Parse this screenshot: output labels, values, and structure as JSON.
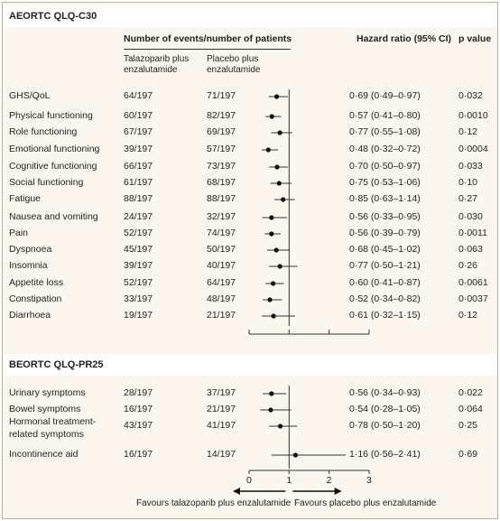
{
  "header": {
    "events_group": "Number of events/number of patients",
    "arm1": [
      "Talazoparib plus",
      "enzalutamide"
    ],
    "arm2": [
      "Placebo plus",
      "enzalutamide"
    ],
    "hr": "Hazard ratio (95% CI)",
    "p": "p value"
  },
  "footer": {
    "favours_left": "Favours talazoparib plus enzalutamide",
    "favours_right": "Favours placebo plus enzalutamide"
  },
  "chart_data": {
    "type": "forest",
    "xlim": [
      0,
      3
    ],
    "x_ticks": [
      "0",
      "1",
      "2",
      "3"
    ],
    "reference_line": 1,
    "panels": [
      {
        "letter": "A",
        "title": "EORTC QLQ-C30",
        "rows": [
          {
            "label": "GHS/QoL",
            "arm1": "64/197",
            "arm2": "71/197",
            "hr": 0.69,
            "lo": 0.49,
            "hi": 0.97,
            "ci_text": "0·69 (0·49–0·97)",
            "p": "0·032"
          },
          {
            "label": "Physical functioning",
            "arm1": "60/197",
            "arm2": "82/197",
            "hr": 0.57,
            "lo": 0.41,
            "hi": 0.8,
            "ci_text": "0·57 (0·41–0·80)",
            "p": "0·0010"
          },
          {
            "label": "Role functioning",
            "arm1": "67/197",
            "arm2": "69/197",
            "hr": 0.77,
            "lo": 0.55,
            "hi": 1.08,
            "ci_text": "0·77 (0·55–1·08)",
            "p": "0·12"
          },
          {
            "label": "Emotional functioning",
            "arm1": "39/197",
            "arm2": "57/197",
            "hr": 0.48,
            "lo": 0.32,
            "hi": 0.72,
            "ci_text": "0·48 (0·32–0·72)",
            "p": "0·0004"
          },
          {
            "label": "Cognitive functioning",
            "arm1": "66/197",
            "arm2": "73/197",
            "hr": 0.7,
            "lo": 0.5,
            "hi": 0.97,
            "ci_text": "0·70 (0·50–0·97)",
            "p": "0·033"
          },
          {
            "label": "Social functioning",
            "arm1": "61/197",
            "arm2": "68/197",
            "hr": 0.75,
            "lo": 0.53,
            "hi": 1.06,
            "ci_text": "0·75 (0·53–1·06)",
            "p": "0·10"
          },
          {
            "label": "Fatigue",
            "arm1": "88/197",
            "arm2": "88/197",
            "hr": 0.85,
            "lo": 0.63,
            "hi": 1.14,
            "ci_text": "0·85 (0·63–1·14)",
            "p": "0·27"
          },
          {
            "label": "Nausea and vomiting",
            "arm1": "24/197",
            "arm2": "32/197",
            "hr": 0.56,
            "lo": 0.33,
            "hi": 0.95,
            "ci_text": "0·56 (0·33–0·95)",
            "p": "0·030"
          },
          {
            "label": "Pain",
            "arm1": "52/197",
            "arm2": "74/197",
            "hr": 0.56,
            "lo": 0.39,
            "hi": 0.79,
            "ci_text": "0·56 (0·39–0·79)",
            "p": "0·0011"
          },
          {
            "label": "Dyspnoea",
            "arm1": "45/197",
            "arm2": "50/197",
            "hr": 0.68,
            "lo": 0.45,
            "hi": 1.02,
            "ci_text": "0·68 (0·45–1·02)",
            "p": "0·063"
          },
          {
            "label": "Insomnia",
            "arm1": "39/197",
            "arm2": "40/197",
            "hr": 0.77,
            "lo": 0.5,
            "hi": 1.21,
            "ci_text": "0·77 (0·50–1·21)",
            "p": "0·26"
          },
          {
            "label": "Appetite loss",
            "arm1": "52/197",
            "arm2": "64/197",
            "hr": 0.6,
            "lo": 0.41,
            "hi": 0.87,
            "ci_text": "0·60 (0·41–0·87)",
            "p": "0·0061"
          },
          {
            "label": "Constipation",
            "arm1": "33/197",
            "arm2": "48/197",
            "hr": 0.52,
            "lo": 0.34,
            "hi": 0.82,
            "ci_text": "0·52 (0·34–0·82)",
            "p": "0·0037"
          },
          {
            "label": "Diarrhoea",
            "arm1": "19/197",
            "arm2": "21/197",
            "hr": 0.61,
            "lo": 0.32,
            "hi": 1.15,
            "ci_text": "0·61 (0·32–1·15)",
            "p": "0·12"
          }
        ]
      },
      {
        "letter": "B",
        "title": "EORTC QLQ-PR25",
        "rows": [
          {
            "label": "Urinary symptoms",
            "arm1": "28/197",
            "arm2": "37/197",
            "hr": 0.56,
            "lo": 0.34,
            "hi": 0.93,
            "ci_text": "0·56 (0·34–0·93)",
            "p": "0·022"
          },
          {
            "label": "Bowel symptoms",
            "arm1": "16/197",
            "arm2": "21/197",
            "hr": 0.54,
            "lo": 0.28,
            "hi": 1.05,
            "ci_text": "0·54 (0·28–1·05)",
            "p": "0·064"
          },
          {
            "label": "Hormonal treatment-related symptoms",
            "label_lines": [
              "Hormonal treatment-",
              "related symptoms"
            ],
            "arm1": "43/197",
            "arm2": "41/197",
            "hr": 0.78,
            "lo": 0.5,
            "hi": 1.2,
            "ci_text": "0·78 (0·50–1·20)",
            "p": "0·25"
          },
          {
            "label": "Incontinence aid",
            "arm1": "16/197",
            "arm2": "14/197",
            "hr": 1.16,
            "lo": 0.56,
            "hi": 2.41,
            "ci_text": "1·16 (0·56–2·41)",
            "p": "0·69"
          }
        ]
      }
    ]
  }
}
